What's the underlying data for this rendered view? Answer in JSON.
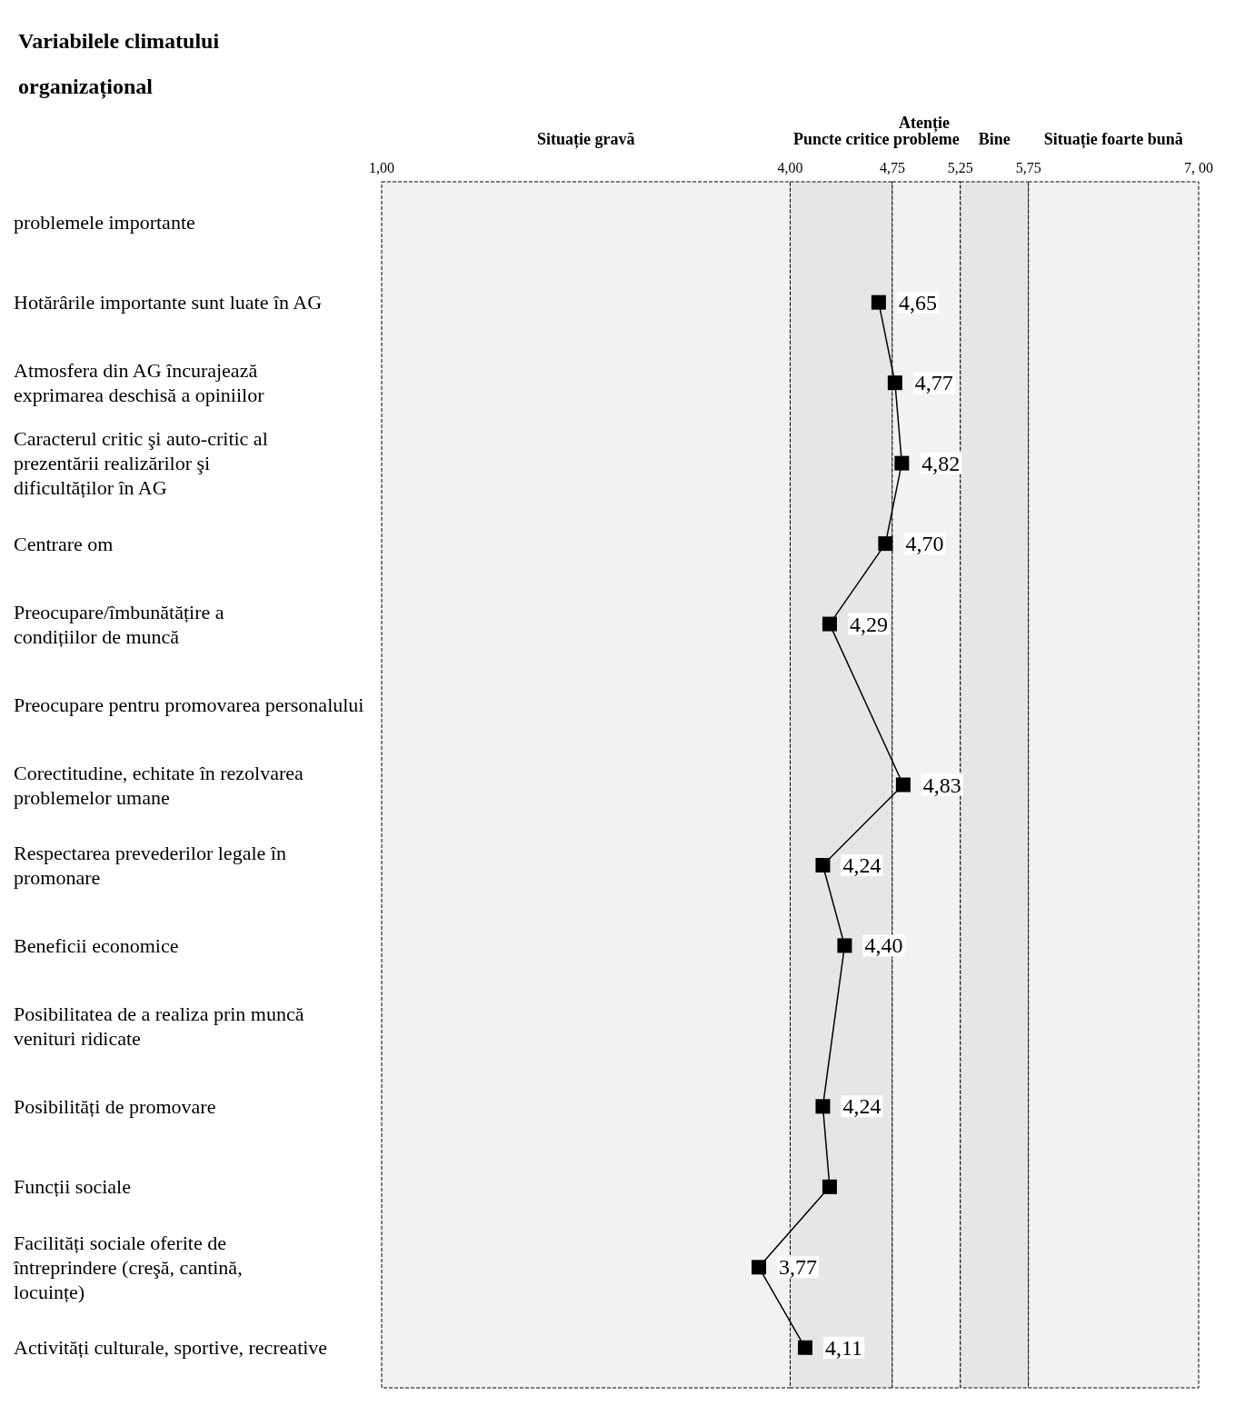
{
  "chart_data": {
    "type": "line",
    "orientation": "horizontal",
    "ylabel": "Variabilele climatului organizațional",
    "categories": [
      "problemele importante",
      "Hotărârile importante sunt luate în AG",
      "Atmosfera din AG încurajează exprimarea deschisă a opiniilor",
      "Caracterul critic şi auto-critic al prezentării realizărilor şi dificultăților în AG",
      "Centrare om",
      "Preocupare/îmbunătățire a condițiilor de muncă",
      "Preocupare pentru promovarea personalului",
      "Corectitudine, echitate în rezolvarea problemelor umane",
      "Respectarea prevederilor legale în promonare",
      "Beneficii economice",
      "Posibilitatea de a realiza prin muncă venituri ridicate",
      "Posibilități de promovare",
      "Funcții sociale",
      "Facilități sociale oferite de întreprindere (creşă, cantină, locuințe)",
      "Activități culturale, sportive, recreative"
    ],
    "values": [
      null,
      4.65,
      4.77,
      4.82,
      4.7,
      4.29,
      null,
      4.83,
      4.24,
      4.4,
      null,
      4.24,
      4.29,
      3.77,
      4.11
    ],
    "value_labels": [
      null,
      "4,65",
      "4,77",
      "4,82",
      "4,70",
      "4,29",
      null,
      "4,83",
      "4,24",
      "4,40",
      null,
      "4,24",
      null,
      "3,77",
      "4,11"
    ],
    "color": "#000000",
    "marker": "square",
    "line_style": "solid",
    "xlim": [
      1,
      7
    ],
    "xticks": [
      {
        "value": 1,
        "label": "1,00"
      },
      {
        "value": 4,
        "label": "4,00"
      },
      {
        "value": 4.75,
        "label": "4,75"
      },
      {
        "value": 5.25,
        "label": "5,25"
      },
      {
        "value": 5.75,
        "label": "5,75"
      },
      {
        "value": 7,
        "label": "7, 00"
      }
    ],
    "bands": [
      {
        "axis": "x",
        "from": 1,
        "to": 4,
        "label": "Situație gravă",
        "color": "#f2f2f2"
      },
      {
        "axis": "x",
        "from": 4,
        "to": 4.75,
        "label": "Puncte critice",
        "color": "#e6e6e6"
      },
      {
        "axis": "x",
        "from": 4.75,
        "to": 5.25,
        "label": "Atenție probleme",
        "color": "#f2f2f2"
      },
      {
        "axis": "x",
        "from": 5.25,
        "to": 5.75,
        "label": "Bine",
        "color": "#e6e6e6"
      },
      {
        "axis": "x",
        "from": 5.75,
        "to": 7,
        "label": "Situație foarte bună",
        "color": "#f2f2f2"
      }
    ],
    "grid": false
  }
}
